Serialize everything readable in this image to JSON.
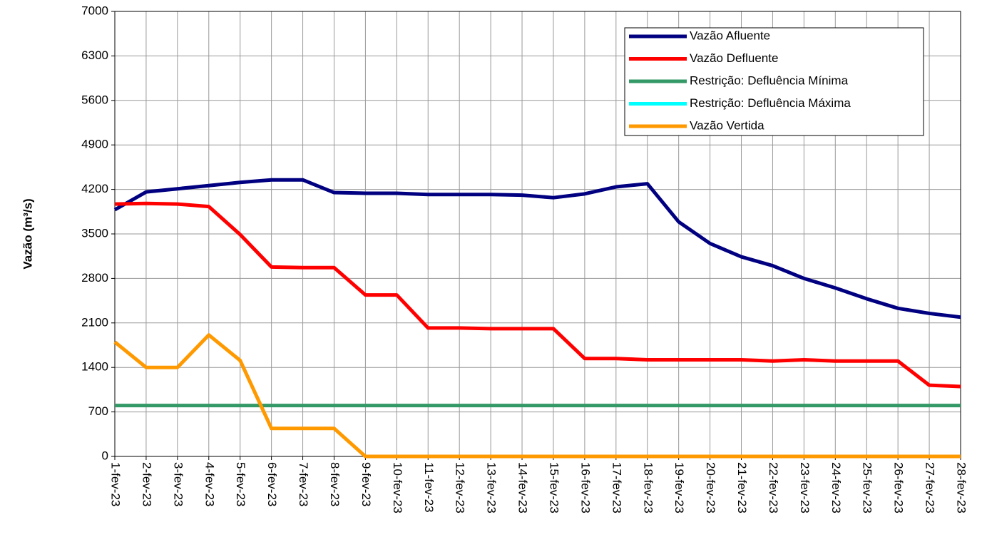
{
  "chart_data": {
    "type": "line",
    "y_label": "Vazão (m³/s)",
    "categories": [
      "1-fev-23",
      "2-fev-23",
      "3-fev-23",
      "4-fev-23",
      "5-fev-23",
      "6-fev-23",
      "7-fev-23",
      "8-fev-23",
      "9-fev-23",
      "10-fev-23",
      "11-fev-23",
      "12-fev-23",
      "13-fev-23",
      "14-fev-23",
      "15-fev-23",
      "16-fev-23",
      "17-fev-23",
      "18-fev-23",
      "19-fev-23",
      "20-fev-23",
      "21-fev-23",
      "22-fev-23",
      "23-fev-23",
      "24-fev-23",
      "25-fev-23",
      "26-fev-23",
      "27-fev-23",
      "28-fev-23"
    ],
    "series": [
      {
        "name": "Vazão Afluente",
        "color": "#000080",
        "values": [
          3880,
          4160,
          4210,
          4260,
          4310,
          4350,
          4350,
          4150,
          4140,
          4140,
          4120,
          4120,
          4120,
          4110,
          4070,
          4130,
          4240,
          4290,
          3690,
          3350,
          3140,
          3000,
          2800,
          2650,
          2480,
          2330,
          2250,
          2190
        ]
      },
      {
        "name": "Vazão Defluente",
        "color": "#ff0000",
        "values": [
          3970,
          3980,
          3970,
          3930,
          3490,
          2980,
          2970,
          2970,
          2540,
          2540,
          2020,
          2020,
          2010,
          2010,
          2010,
          1540,
          1540,
          1520,
          1520,
          1520,
          1520,
          1500,
          1520,
          1500,
          1500,
          1500,
          1120,
          1100
        ]
      },
      {
        "name": "Restrição: Defluência Mínima",
        "color": "#339966",
        "values": [
          800,
          800,
          800,
          800,
          800,
          800,
          800,
          800,
          800,
          800,
          800,
          800,
          800,
          800,
          800,
          800,
          800,
          800,
          800,
          800,
          800,
          800,
          800,
          800,
          800,
          800,
          800,
          800
        ]
      },
      {
        "name": "Restrição: Defluência Máxima",
        "color": "#00ffff",
        "values": [
          null,
          null,
          null,
          null,
          null,
          null,
          null,
          null,
          null,
          null,
          null,
          null,
          null,
          null,
          null,
          null,
          null,
          null,
          null,
          null,
          null,
          null,
          null,
          null,
          null,
          null,
          null,
          null
        ]
      },
      {
        "name": "Vazão Vertida",
        "color": "#ff9900",
        "values": [
          1800,
          1400,
          1400,
          1910,
          1510,
          440,
          440,
          440,
          0,
          0,
          0,
          0,
          0,
          0,
          0,
          0,
          0,
          0,
          0,
          0,
          0,
          0,
          0,
          0,
          0,
          0,
          0,
          0
        ]
      }
    ],
    "ylim": [
      0,
      7000
    ],
    "yticks": [
      0,
      700,
      1400,
      2100,
      2800,
      3500,
      4200,
      4900,
      5600,
      6300,
      7000
    ],
    "grid": true
  }
}
